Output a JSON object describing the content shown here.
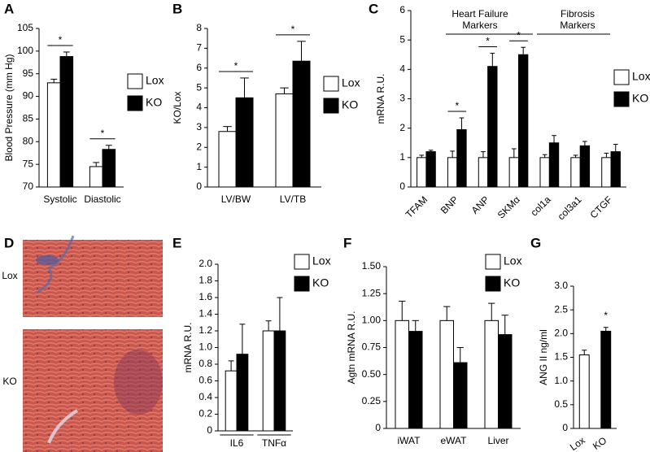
{
  "chart_data": [
    {
      "type": "bar",
      "panel": "A",
      "ylabel": "Blood Pressure (mm Hg)",
      "categories": [
        "Systolic",
        "Diastolic"
      ],
      "series": [
        {
          "name": "Lox",
          "color": "#ffffff",
          "values": [
            93,
            74.5
          ],
          "errors": [
            0.8,
            0.9
          ]
        },
        {
          "name": "KO",
          "color": "#000000",
          "values": [
            98.8,
            78.3
          ],
          "errors": [
            1.0,
            0.9
          ]
        }
      ],
      "significance": [
        "*",
        "*"
      ],
      "ylim": [
        70,
        105
      ],
      "yticks": [
        70,
        75,
        80,
        85,
        90,
        95,
        100,
        105
      ],
      "legend": "right"
    },
    {
      "type": "bar",
      "panel": "B",
      "ylabel": "KO/Lox",
      "categories": [
        "LV/BW",
        "LV/TB"
      ],
      "series": [
        {
          "name": "Lox",
          "color": "#ffffff",
          "values": [
            2.8,
            4.7
          ],
          "errors": [
            0.25,
            0.3
          ]
        },
        {
          "name": "KO",
          "color": "#000000",
          "values": [
            4.5,
            6.35
          ],
          "errors": [
            1.0,
            1.0
          ]
        }
      ],
      "significance": [
        "*",
        "*"
      ],
      "ylim": [
        0,
        8
      ],
      "yticks": [
        0,
        1,
        2,
        3,
        4,
        5,
        6,
        7,
        8
      ],
      "legend": "right"
    },
    {
      "type": "bar",
      "panel": "C",
      "ylabel": "mRNA R.U.",
      "categories": [
        "TFAM",
        "BNP",
        "ANP",
        "SKMα",
        "col1a",
        "col3a1",
        "CTGF"
      ],
      "series": [
        {
          "name": "Lox",
          "color": "#ffffff",
          "values": [
            1,
            1,
            1,
            1,
            1,
            1,
            1
          ],
          "errors": [
            0.08,
            0.22,
            0.2,
            0.3,
            0.1,
            0.08,
            0.15
          ]
        },
        {
          "name": "KO",
          "color": "#000000",
          "values": [
            1.2,
            1.95,
            4.1,
            4.5,
            1.5,
            1.4,
            1.2
          ],
          "errors": [
            0.05,
            0.4,
            0.45,
            0.25,
            0.25,
            0.15,
            0.25
          ]
        }
      ],
      "significance": [
        null,
        "*",
        "*",
        "*",
        null,
        null,
        null
      ],
      "groups": [
        "Heart Failure Markers",
        "Fibrosis Markers"
      ],
      "ylim": [
        0,
        6
      ],
      "yticks": [
        0,
        1,
        2,
        3,
        4,
        5,
        6
      ],
      "legend": "right"
    },
    {
      "type": "image",
      "panel": "D",
      "labels": [
        "Lox",
        "KO"
      ]
    },
    {
      "type": "bar",
      "panel": "E",
      "ylabel": "mRNA R.U.",
      "categories": [
        "IL6",
        "TNFα"
      ],
      "series": [
        {
          "name": "Lox",
          "color": "#ffffff",
          "values": [
            0.72,
            1.2
          ],
          "errors": [
            0.12,
            0.12
          ]
        },
        {
          "name": "KO",
          "color": "#000000",
          "values": [
            0.92,
            1.2
          ],
          "errors": [
            0.36,
            0.4
          ]
        }
      ],
      "ylim": [
        0,
        2
      ],
      "yticks": [
        0,
        0.2,
        0.4,
        0.6,
        0.8,
        {
          "value": 1,
          "label": "1.0"
        },
        1.2,
        1.4,
        1.6,
        1.8,
        {
          "value": 2,
          "label": "2.0"
        }
      ],
      "legend": "right"
    },
    {
      "type": "bar",
      "panel": "F",
      "ylabel": "Agtn mRNA R.U.",
      "categories": [
        "iWAT",
        "eWAT",
        "Liver"
      ],
      "series": [
        {
          "name": "Lox",
          "color": "#ffffff",
          "values": [
            1.0,
            1.0,
            1.0
          ],
          "errors": [
            0.18,
            0.13,
            0.16
          ]
        },
        {
          "name": "KO",
          "color": "#000000",
          "values": [
            0.9,
            0.61,
            0.87
          ],
          "errors": [
            0.1,
            0.14,
            0.18
          ]
        }
      ],
      "ylim": [
        0,
        1.5
      ],
      "yticks": [
        0,
        0.25,
        {
          "value": 0.5,
          "label": "0.50"
        },
        0.75,
        {
          "value": 1,
          "label": "1.00"
        },
        1.25,
        {
          "value": 1.5,
          "label": "1.50"
        }
      ],
      "legend": "right"
    },
    {
      "type": "bar",
      "panel": "G",
      "ylabel": "ANG II ng/ml",
      "categories": [
        "Lox",
        "KO"
      ],
      "series": [
        {
          "colors": [
            "#ffffff",
            "#000000"
          ],
          "values": [
            1.55,
            2.05
          ],
          "errors": [
            0.1,
            0.08
          ]
        }
      ],
      "significance": [
        null,
        "*"
      ],
      "ylim": [
        0,
        3
      ],
      "yticks": [
        0,
        0.5,
        {
          "value": 1,
          "label": "1.0"
        },
        1.5,
        {
          "value": 2,
          "label": "2.0"
        },
        2.5,
        {
          "value": 3,
          "label": "3.0"
        }
      ]
    }
  ]
}
